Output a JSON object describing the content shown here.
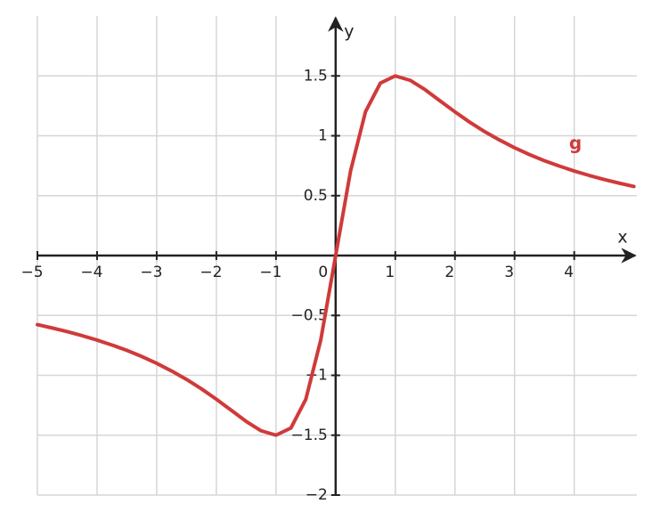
{
  "chart_data": {
    "type": "line",
    "x_label": "x",
    "y_label": "y",
    "x": [
      -5,
      -4.75,
      -4.5,
      -4.25,
      -4,
      -3.75,
      -3.5,
      -3.25,
      -3,
      -2.75,
      -2.5,
      -2.25,
      -2,
      -1.75,
      -1.5,
      -1.25,
      -1,
      -0.75,
      -0.5,
      -0.25,
      0,
      0.25,
      0.5,
      0.75,
      1,
      1.25,
      1.5,
      1.75,
      2,
      2.25,
      2.5,
      2.75,
      3,
      3.25,
      3.5,
      3.75,
      4,
      4.25,
      4.5,
      4.75,
      5
    ],
    "series": [
      {
        "name": "g",
        "color": "#d03a3a",
        "values": [
          -0.577,
          -0.605,
          -0.635,
          -0.669,
          -0.706,
          -0.747,
          -0.792,
          -0.843,
          -0.9,
          -0.964,
          -1.034,
          -1.113,
          -1.2,
          -1.292,
          -1.385,
          -1.463,
          -1.5,
          -1.44,
          -1.2,
          -0.706,
          0,
          0.706,
          1.2,
          1.44,
          1.5,
          1.463,
          1.385,
          1.292,
          1.2,
          1.113,
          1.034,
          0.964,
          0.9,
          0.843,
          0.792,
          0.747,
          0.706,
          0.669,
          0.635,
          0.605,
          0.577
        ]
      }
    ],
    "xlim": [
      -5,
      5.05
    ],
    "ylim": [
      -2,
      2
    ],
    "xticks": [
      {
        "value": -5,
        "label": "−5"
      },
      {
        "value": -4,
        "label": "−4"
      },
      {
        "value": -3,
        "label": "−3"
      },
      {
        "value": -2,
        "label": "−2"
      },
      {
        "value": -1,
        "label": "−1"
      },
      0,
      1,
      2,
      3,
      4
    ],
    "yticks": [
      {
        "value": -2,
        "label": "−2"
      },
      {
        "value": -1.5,
        "label": "−1.5"
      },
      {
        "value": -1,
        "label": "−1"
      },
      {
        "value": -0.5,
        "label": "−0.5"
      },
      0.5,
      1,
      1.5
    ],
    "grid": true
  }
}
